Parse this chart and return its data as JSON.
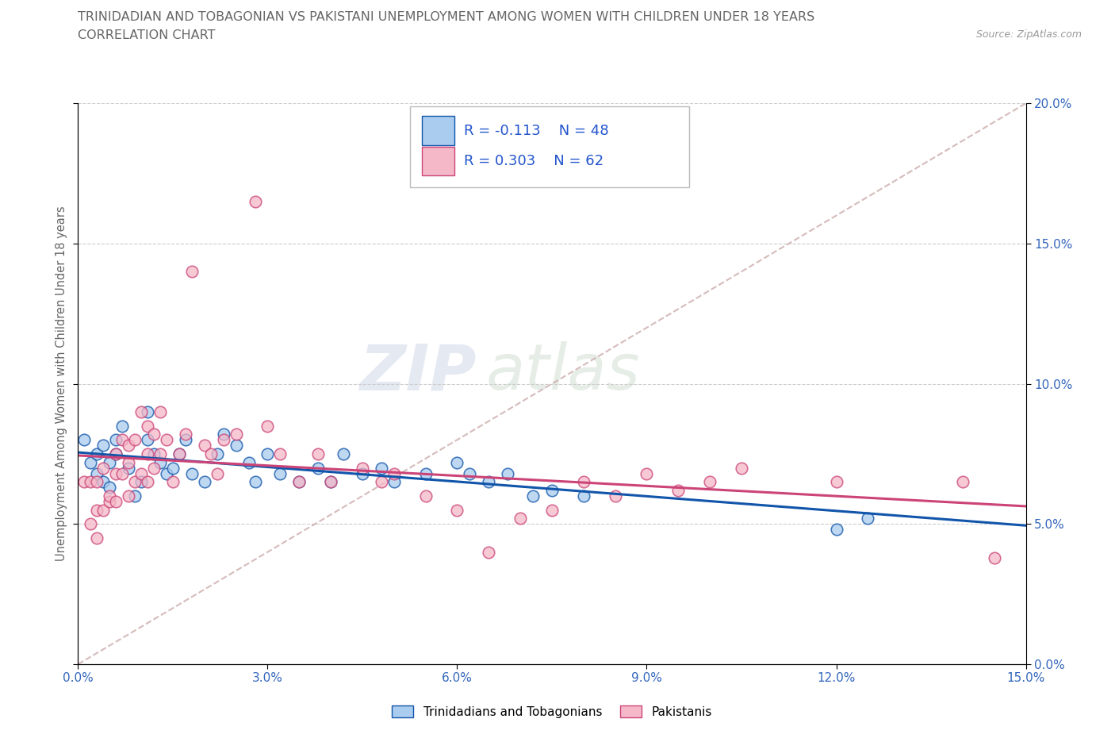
{
  "title": "TRINIDADIAN AND TOBAGONIAN VS PAKISTANI UNEMPLOYMENT AMONG WOMEN WITH CHILDREN UNDER 18 YEARS",
  "subtitle": "CORRELATION CHART",
  "source": "Source: ZipAtlas.com",
  "ylabel": "Unemployment Among Women with Children Under 18 years",
  "watermark_zip": "ZIP",
  "watermark_atlas": "atlas",
  "legend_label1": "Trinidadians and Tobagonians",
  "legend_label2": "Pakistanis",
  "r1": -0.113,
  "n1": 48,
  "r2": 0.303,
  "n2": 62,
  "color_blue": "#aaccee",
  "color_pink": "#f4b8c8",
  "line_blue": "#1155aa",
  "line_pink": "#cc4477",
  "line_dashed_color": "#ccaaaa",
  "title_color": "#666666",
  "subtitle_color": "#666666",
  "tick_color": "#3366bb",
  "legend_text_color": "#2255cc",
  "xmin": 0.0,
  "xmax": 0.15,
  "ymin": 0.0,
  "ymax": 0.2,
  "blue_x": [
    0.001,
    0.002,
    0.003,
    0.003,
    0.004,
    0.004,
    0.005,
    0.005,
    0.006,
    0.006,
    0.007,
    0.008,
    0.009,
    0.01,
    0.011,
    0.011,
    0.012,
    0.013,
    0.014,
    0.015,
    0.016,
    0.017,
    0.018,
    0.02,
    0.022,
    0.023,
    0.025,
    0.027,
    0.028,
    0.03,
    0.032,
    0.035,
    0.038,
    0.04,
    0.042,
    0.045,
    0.048,
    0.05,
    0.055,
    0.06,
    0.062,
    0.065,
    0.068,
    0.072,
    0.075,
    0.08,
    0.12,
    0.125
  ],
  "blue_y": [
    0.08,
    0.072,
    0.068,
    0.075,
    0.065,
    0.078,
    0.072,
    0.063,
    0.075,
    0.08,
    0.085,
    0.07,
    0.06,
    0.065,
    0.08,
    0.09,
    0.075,
    0.072,
    0.068,
    0.07,
    0.075,
    0.08,
    0.068,
    0.065,
    0.075,
    0.082,
    0.078,
    0.072,
    0.065,
    0.075,
    0.068,
    0.065,
    0.07,
    0.065,
    0.075,
    0.068,
    0.07,
    0.065,
    0.068,
    0.072,
    0.068,
    0.065,
    0.068,
    0.06,
    0.062,
    0.06,
    0.048,
    0.052
  ],
  "pink_x": [
    0.001,
    0.002,
    0.002,
    0.003,
    0.003,
    0.003,
    0.004,
    0.004,
    0.005,
    0.005,
    0.006,
    0.006,
    0.006,
    0.007,
    0.007,
    0.008,
    0.008,
    0.008,
    0.009,
    0.009,
    0.01,
    0.01,
    0.011,
    0.011,
    0.011,
    0.012,
    0.012,
    0.013,
    0.013,
    0.014,
    0.015,
    0.016,
    0.017,
    0.018,
    0.02,
    0.021,
    0.022,
    0.023,
    0.025,
    0.028,
    0.03,
    0.032,
    0.035,
    0.038,
    0.04,
    0.045,
    0.048,
    0.05,
    0.055,
    0.06,
    0.065,
    0.07,
    0.075,
    0.08,
    0.085,
    0.09,
    0.095,
    0.1,
    0.105,
    0.12,
    0.14,
    0.145
  ],
  "pink_y": [
    0.065,
    0.05,
    0.065,
    0.045,
    0.055,
    0.065,
    0.055,
    0.07,
    0.058,
    0.06,
    0.068,
    0.058,
    0.075,
    0.068,
    0.08,
    0.06,
    0.072,
    0.078,
    0.065,
    0.08,
    0.068,
    0.09,
    0.065,
    0.075,
    0.085,
    0.07,
    0.082,
    0.075,
    0.09,
    0.08,
    0.065,
    0.075,
    0.082,
    0.14,
    0.078,
    0.075,
    0.068,
    0.08,
    0.082,
    0.165,
    0.085,
    0.075,
    0.065,
    0.075,
    0.065,
    0.07,
    0.065,
    0.068,
    0.06,
    0.055,
    0.04,
    0.052,
    0.055,
    0.065,
    0.06,
    0.068,
    0.062,
    0.065,
    0.07,
    0.065,
    0.065,
    0.038
  ]
}
